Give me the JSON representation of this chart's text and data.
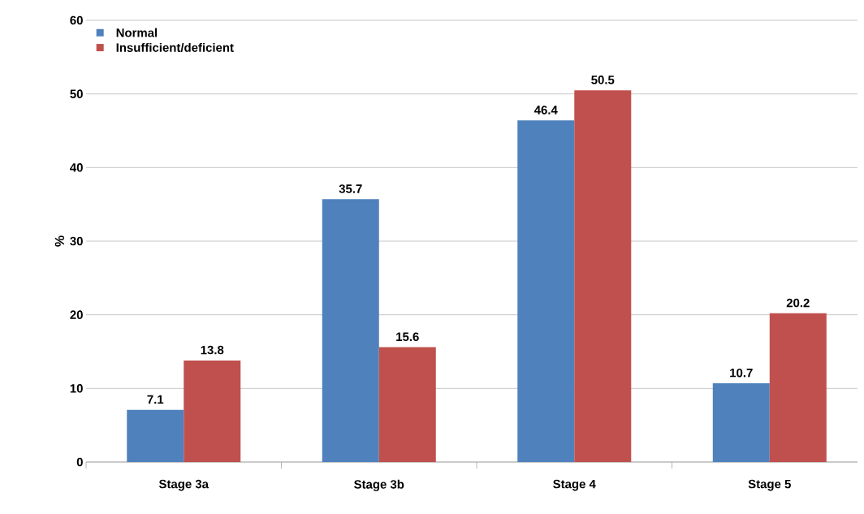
{
  "chart_data": {
    "type": "bar",
    "ylabel": "%",
    "categories": [
      "Stage 3a",
      "Stage 3b",
      "Stage 4",
      "Stage 5"
    ],
    "series": [
      {
        "name": "Normal",
        "color": "#4f81bd",
        "values": [
          7.1,
          35.7,
          46.4,
          10.7
        ]
      },
      {
        "name": "Insufficient/deficient",
        "color": "#c0504d",
        "values": [
          13.8,
          15.6,
          50.5,
          20.2
        ]
      }
    ],
    "ylim": [
      0,
      60
    ],
    "yticks": [
      0,
      10,
      20,
      30,
      40,
      50,
      60
    ],
    "grid": "y",
    "legend": "top left",
    "data_labels": true
  }
}
